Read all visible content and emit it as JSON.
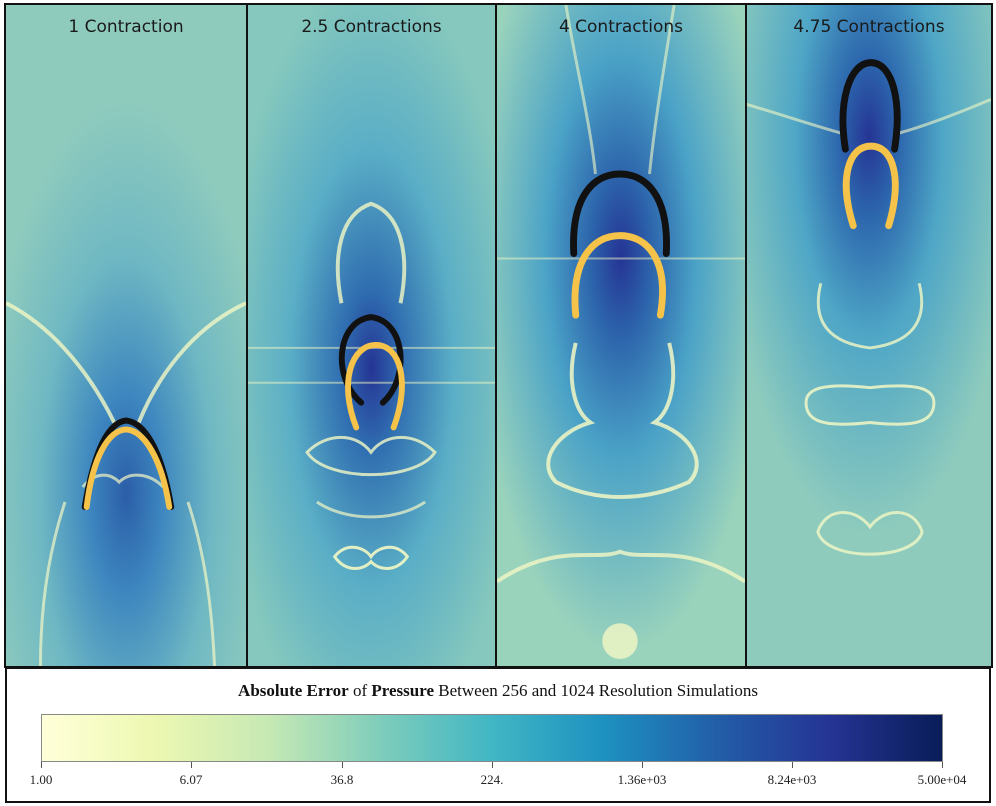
{
  "panels": [
    {
      "title": "1 Contraction"
    },
    {
      "title": "2.5 Contractions"
    },
    {
      "title": "4 Contractions"
    },
    {
      "title": "4.75 Contractions"
    }
  ],
  "colorbar": {
    "title_part1": "Absolute Error",
    "title_part2": " of ",
    "title_part3": "Pressure",
    "title_part4": " Between 256 and 1024 Resolution Simulations",
    "ticks": [
      "1.00",
      "6.07",
      "36.8",
      "224.",
      "1.36e+03",
      "8.24e+03",
      "5.00e+04"
    ],
    "colormap": [
      "#ffffd9",
      "#edf8b1",
      "#c7e9b4",
      "#7fcdbb",
      "#41b6c4",
      "#1d91c0",
      "#225ea8",
      "#253494",
      "#081d58"
    ]
  },
  "colors": {
    "background_field": "#7fc4c0",
    "low_error": "#ffffd9",
    "high_error": "#081d58",
    "membrane_256": "#111111",
    "membrane_1024": "#f5c24a"
  }
}
